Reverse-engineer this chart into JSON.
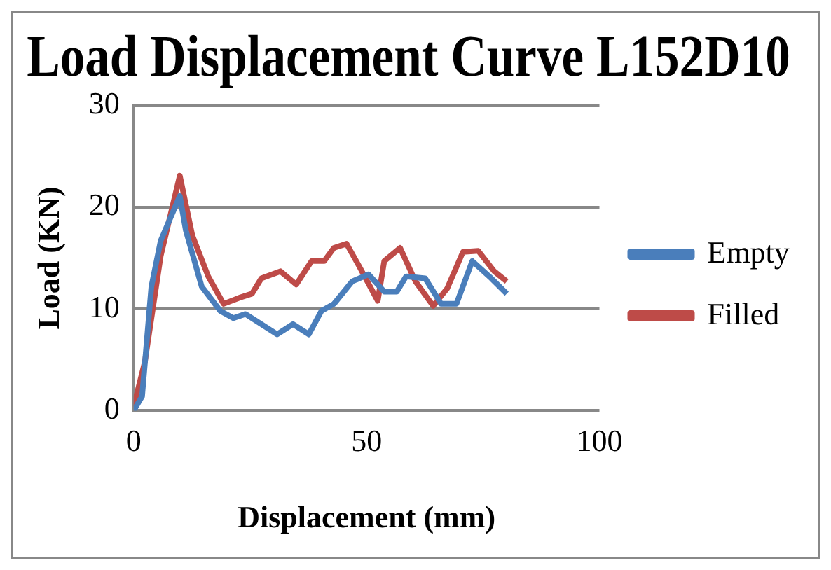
{
  "chart_data": {
    "type": "line",
    "title": "Load Displacement Curve L152D10",
    "xlabel": "Displacement (mm)",
    "ylabel": "Load (KN)",
    "xlim": [
      0,
      100
    ],
    "xticks": [
      0,
      50,
      100
    ],
    "ylim": [
      0,
      30
    ],
    "yticks": [
      0,
      10,
      20,
      30
    ],
    "grid": "y",
    "legend": "right",
    "marker": "none",
    "line_style": "solid",
    "series": [
      {
        "name": "Empty",
        "color": "#4a7ebb",
        "x": [
          0,
          1.8,
          3.8,
          5.8,
          9.9,
          11.2,
          14.6,
          18.6,
          21.4,
          24,
          30.8,
          34.2,
          37.6,
          40.3,
          43,
          46.9,
          50.4,
          53.8,
          56.5,
          58.5,
          62.6,
          66,
          69.3,
          72.7,
          76.8,
          80.1
        ],
        "values": [
          0,
          1.4,
          12.2,
          16.7,
          21.1,
          17.7,
          12.2,
          9.8,
          9.1,
          9.5,
          7.5,
          8.5,
          7.5,
          9.8,
          10.5,
          12.7,
          13.4,
          11.7,
          11.7,
          13.2,
          13,
          10.5,
          10.5,
          14.7,
          13,
          11.5
        ]
      },
      {
        "name": "Filled",
        "color": "#be4b48",
        "x": [
          0,
          2.4,
          5.8,
          9.9,
          12.6,
          16,
          19.3,
          22.7,
          25.4,
          27.4,
          31.5,
          34.9,
          38.2,
          40.9,
          43,
          45.7,
          48.4,
          52.4,
          53.8,
          57.2,
          60.5,
          64.3,
          67.3,
          70.7,
          74,
          77.4,
          80.1
        ],
        "values": [
          0.4,
          4.8,
          15.2,
          23.1,
          17.2,
          13.2,
          10.5,
          11.1,
          11.5,
          13,
          13.7,
          12.4,
          14.7,
          14.7,
          16,
          16.4,
          14.2,
          10.8,
          14.7,
          16,
          12.7,
          10.3,
          12,
          15.6,
          15.7,
          13.7,
          12.7
        ]
      }
    ]
  }
}
